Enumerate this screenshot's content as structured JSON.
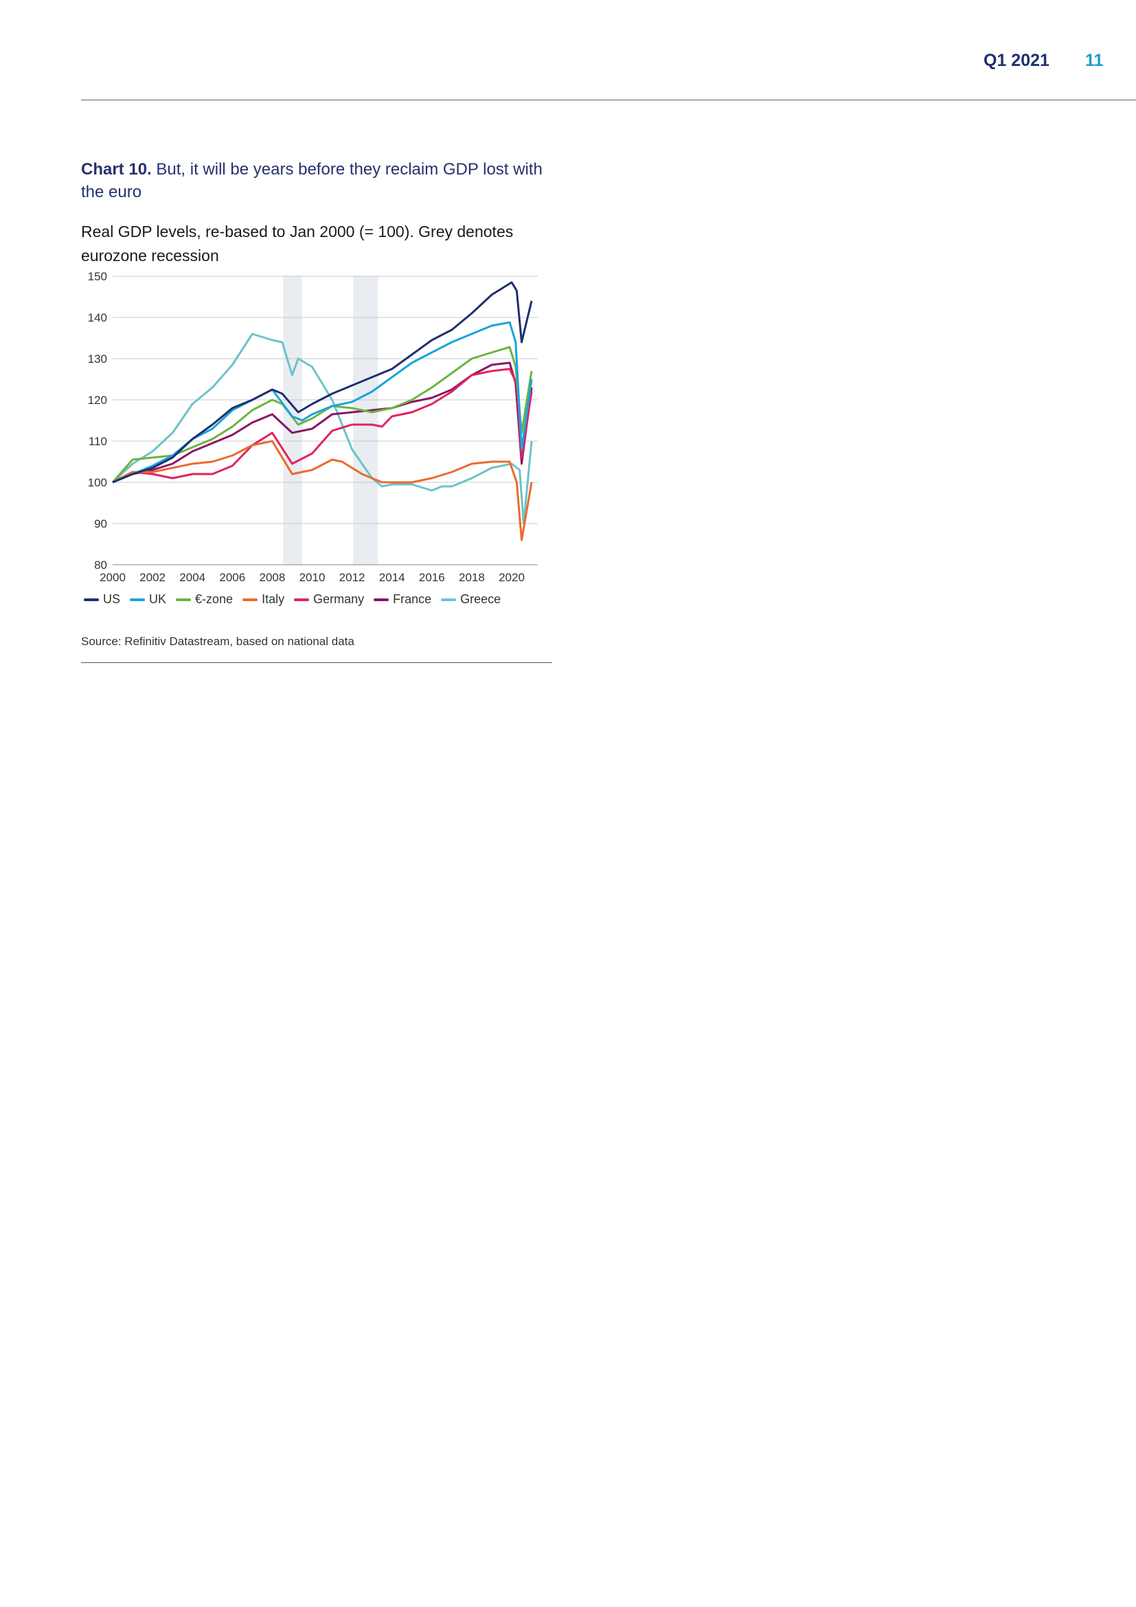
{
  "header": {
    "period": "Q1 2021",
    "page_number": "11"
  },
  "chart_title": {
    "label": "Chart 10.",
    "text": " But, it will be years before they reclaim GDP lost with the euro"
  },
  "chart_subtitle": "Real GDP levels, re-based to Jan 2000 (= 100). Grey denotes eurozone recession",
  "source": "Source: Refinitiv Datastream, based on national data",
  "chart_data": {
    "type": "line",
    "xlim": [
      2000,
      2021.3
    ],
    "ylim": [
      80,
      150
    ],
    "yticks": [
      80,
      90,
      100,
      110,
      120,
      130,
      140,
      150
    ],
    "xticks": [
      2000,
      2002,
      2004,
      2006,
      2008,
      2010,
      2012,
      2014,
      2016,
      2018,
      2020
    ],
    "grid": "horizontal",
    "legend_position": "bottom",
    "recession_bands": [
      [
        2008.55,
        2009.5
      ],
      [
        2012.05,
        2013.3
      ]
    ],
    "recession_color": "#e9edf1",
    "series": [
      {
        "name": "US",
        "color": "#1f2f6e",
        "points": [
          [
            2000,
            100
          ],
          [
            2001,
            102
          ],
          [
            2002,
            103.5
          ],
          [
            2003,
            106
          ],
          [
            2004,
            110.5
          ],
          [
            2005,
            114
          ],
          [
            2006,
            118
          ],
          [
            2007,
            120
          ],
          [
            2008,
            122.5
          ],
          [
            2008.5,
            121.5
          ],
          [
            2009.3,
            117
          ],
          [
            2010,
            119
          ],
          [
            2011,
            121.5
          ],
          [
            2012,
            123.5
          ],
          [
            2013,
            125.5
          ],
          [
            2014,
            127.5
          ],
          [
            2015,
            131
          ],
          [
            2016,
            134.5
          ],
          [
            2017,
            137
          ],
          [
            2018,
            141
          ],
          [
            2019,
            145.5
          ],
          [
            2020,
            148.5
          ],
          [
            2020.25,
            146.5
          ],
          [
            2020.5,
            134
          ],
          [
            2021,
            144
          ]
        ]
      },
      {
        "name": "UK",
        "color": "#1aa3df",
        "points": [
          [
            2000,
            100
          ],
          [
            2001,
            102
          ],
          [
            2002,
            104
          ],
          [
            2003,
            106.5
          ],
          [
            2004,
            110.5
          ],
          [
            2005,
            113
          ],
          [
            2006,
            117.5
          ],
          [
            2007,
            120
          ],
          [
            2008,
            122.5
          ],
          [
            2009,
            116
          ],
          [
            2009.5,
            115
          ],
          [
            2010,
            116.5
          ],
          [
            2011,
            118.5
          ],
          [
            2012,
            119.5
          ],
          [
            2013,
            122
          ],
          [
            2014,
            125.5
          ],
          [
            2015,
            129
          ],
          [
            2016,
            131.5
          ],
          [
            2017,
            134
          ],
          [
            2018,
            136
          ],
          [
            2019,
            138
          ],
          [
            2019.9,
            138.8
          ],
          [
            2020.2,
            134
          ],
          [
            2020.5,
            108
          ],
          [
            2021,
            125
          ]
        ]
      },
      {
        "name": "€-zone",
        "color": "#6db33f",
        "points": [
          [
            2000,
            100
          ],
          [
            2001,
            105.5
          ],
          [
            2002,
            106
          ],
          [
            2003,
            106.5
          ],
          [
            2004,
            108.5
          ],
          [
            2005,
            110.5
          ],
          [
            2006,
            113.5
          ],
          [
            2007,
            117.5
          ],
          [
            2008,
            120
          ],
          [
            2008.5,
            119
          ],
          [
            2009.3,
            114
          ],
          [
            2010,
            115.5
          ],
          [
            2011,
            118.5
          ],
          [
            2012,
            118
          ],
          [
            2013,
            117
          ],
          [
            2014,
            118
          ],
          [
            2015,
            120
          ],
          [
            2016,
            123
          ],
          [
            2017,
            126.5
          ],
          [
            2018,
            130
          ],
          [
            2019,
            131.5
          ],
          [
            2019.9,
            132.8
          ],
          [
            2020.2,
            128
          ],
          [
            2020.5,
            112
          ],
          [
            2021,
            127
          ]
        ]
      },
      {
        "name": "Italy",
        "color": "#ec6a2b",
        "points": [
          [
            2000,
            100
          ],
          [
            2001,
            102.5
          ],
          [
            2002,
            102.5
          ],
          [
            2003,
            103.5
          ],
          [
            2004,
            104.5
          ],
          [
            2005,
            105
          ],
          [
            2006,
            106.5
          ],
          [
            2007,
            109
          ],
          [
            2008,
            110
          ],
          [
            2009,
            102
          ],
          [
            2010,
            103
          ],
          [
            2011,
            105.5
          ],
          [
            2011.5,
            105
          ],
          [
            2012.5,
            102
          ],
          [
            2013.5,
            100
          ],
          [
            2014,
            100
          ],
          [
            2015,
            100
          ],
          [
            2016,
            101
          ],
          [
            2017,
            102.5
          ],
          [
            2018,
            104.5
          ],
          [
            2019,
            105
          ],
          [
            2019.9,
            105
          ],
          [
            2020.25,
            100
          ],
          [
            2020.5,
            86
          ],
          [
            2021,
            100
          ]
        ]
      },
      {
        "name": "Germany",
        "color": "#e0245e",
        "points": [
          [
            2000,
            100
          ],
          [
            2001,
            102.5
          ],
          [
            2002,
            102
          ],
          [
            2003,
            101
          ],
          [
            2004,
            102
          ],
          [
            2005,
            102
          ],
          [
            2006,
            104
          ],
          [
            2007,
            109
          ],
          [
            2008,
            112
          ],
          [
            2009,
            104.5
          ],
          [
            2010,
            107
          ],
          [
            2011,
            112.5
          ],
          [
            2012,
            114
          ],
          [
            2013,
            114
          ],
          [
            2013.5,
            113.5
          ],
          [
            2014,
            116
          ],
          [
            2015,
            117
          ],
          [
            2016,
            119
          ],
          [
            2017,
            122
          ],
          [
            2018,
            126
          ],
          [
            2019,
            127
          ],
          [
            2019.9,
            127.5
          ],
          [
            2020.25,
            124
          ],
          [
            2020.5,
            106
          ],
          [
            2021,
            122
          ]
        ]
      },
      {
        "name": "France",
        "color": "#8a1466",
        "points": [
          [
            2000,
            100
          ],
          [
            2001,
            102
          ],
          [
            2002,
            103
          ],
          [
            2003,
            104.5
          ],
          [
            2004,
            107.5
          ],
          [
            2005,
            109.5
          ],
          [
            2006,
            111.5
          ],
          [
            2007,
            114.5
          ],
          [
            2008,
            116.5
          ],
          [
            2009,
            112
          ],
          [
            2010,
            113
          ],
          [
            2011,
            116.5
          ],
          [
            2012,
            117
          ],
          [
            2013,
            117.5
          ],
          [
            2014,
            118
          ],
          [
            2015,
            119.5
          ],
          [
            2016,
            120.5
          ],
          [
            2017,
            122.5
          ],
          [
            2018,
            126
          ],
          [
            2019,
            128.5
          ],
          [
            2019.9,
            129
          ],
          [
            2020.2,
            124
          ],
          [
            2020.5,
            104.5
          ],
          [
            2021,
            123
          ]
        ]
      },
      {
        "name": "Greece",
        "color": "#6cc3c9",
        "points": [
          [
            2000,
            100
          ],
          [
            2001,
            104.5
          ],
          [
            2002,
            107.5
          ],
          [
            2003,
            112
          ],
          [
            2004,
            119
          ],
          [
            2005,
            123
          ],
          [
            2006,
            128.5
          ],
          [
            2007,
            136
          ],
          [
            2008,
            134.5
          ],
          [
            2008.5,
            134
          ],
          [
            2009,
            126
          ],
          [
            2009.3,
            130
          ],
          [
            2010,
            128
          ],
          [
            2011,
            120
          ],
          [
            2012,
            108
          ],
          [
            2013,
            101
          ],
          [
            2013.5,
            99
          ],
          [
            2014,
            99.5
          ],
          [
            2015,
            99.5
          ],
          [
            2016,
            98
          ],
          [
            2016.5,
            99
          ],
          [
            2017,
            99
          ],
          [
            2018,
            101
          ],
          [
            2019,
            103.5
          ],
          [
            2020,
            104.5
          ],
          [
            2020.4,
            103
          ],
          [
            2020.6,
            90
          ],
          [
            2021,
            110
          ]
        ]
      }
    ]
  }
}
